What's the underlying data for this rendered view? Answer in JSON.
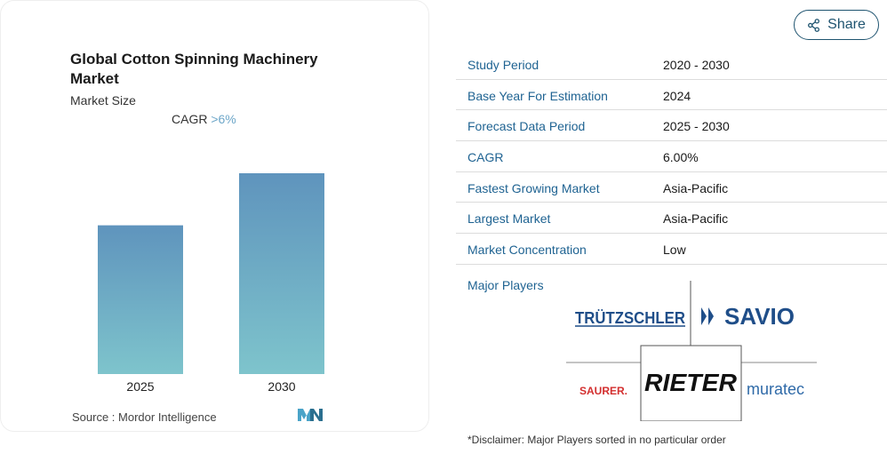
{
  "card": {
    "title": "Global Cotton Spinning Machinery Market",
    "subtitle": "Market Size",
    "cagr_label": "CAGR",
    "cagr_value": ">6%",
    "source": "Source :  Mordor Intelligence"
  },
  "chart_data": {
    "type": "bar",
    "categories": [
      "2025",
      "2030"
    ],
    "values": [
      1,
      1.35
    ],
    "title": "",
    "xlabel": "",
    "ylabel": "",
    "grid": false,
    "colors": {
      "top": "#5f94bd",
      "bottom": "#7ec4cc"
    }
  },
  "share": {
    "label": "Share",
    "icon": "share-icon"
  },
  "table": {
    "rows": [
      {
        "key": "Study Period",
        "value": "2020 - 2030"
      },
      {
        "key": "Base Year For Estimation",
        "value": "2024"
      },
      {
        "key": "Forecast Data Period",
        "value": "2025 - 2030"
      },
      {
        "key": "CAGR",
        "value": "6.00%"
      },
      {
        "key": "Fastest Growing Market",
        "value": "Asia-Pacific"
      },
      {
        "key": "Largest Market",
        "value": "Asia-Pacific"
      },
      {
        "key": "Market Concentration",
        "value": "Low"
      }
    ]
  },
  "major_players": {
    "label": "Major Players",
    "logos": [
      "TRÜTZSCHLER",
      "SAVIO",
      "SAURER.",
      "RIETER",
      "muratec"
    ],
    "disclaimer": "*Disclaimer: Major Players sorted in no particular order"
  },
  "colors": {
    "accent": "#1f6392",
    "share_border": "#1f5470"
  }
}
